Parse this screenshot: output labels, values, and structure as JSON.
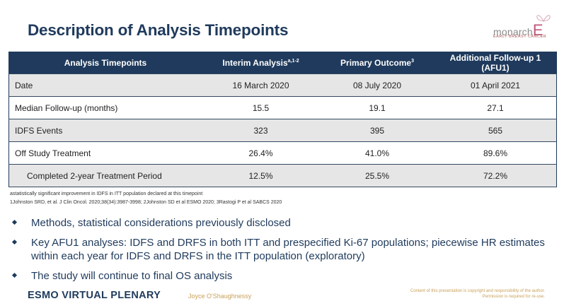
{
  "slide": {
    "title": "Description of Analysis Timepoints"
  },
  "brand": {
    "name_prefix": "monarch",
    "name_suffix": "E",
    "tagline": "EARLY BREAST CANCER",
    "accent_color": "#c0567a"
  },
  "table": {
    "header_color": "#1f3a5c",
    "headers": [
      {
        "text": "Analysis Timepoints",
        "sup": ""
      },
      {
        "text": "Interim Analysis",
        "sup": "a,1-2"
      },
      {
        "text": "Primary Outcome",
        "sup": "3"
      },
      {
        "text": "Additional Follow-up 1 (AFU1)",
        "sup": ""
      }
    ],
    "rows": [
      {
        "label": "Date",
        "values": [
          "16 March 2020",
          "08 July 2020",
          "01 April 2021"
        ]
      },
      {
        "label": "Median Follow-up (months)",
        "values": [
          "15.5",
          "19.1",
          "27.1"
        ]
      },
      {
        "label": "IDFS Events",
        "values": [
          "323",
          "395",
          "565"
        ]
      },
      {
        "label": "Off Study Treatment",
        "values": [
          "26.4%",
          "41.0%",
          "89.6%"
        ]
      },
      {
        "label": "Completed 2-year Treatment Period",
        "values": [
          "12.5%",
          "25.5%",
          "72.2%"
        ]
      }
    ]
  },
  "footnotes": {
    "a": "astatistically significant improvement in IDFS in ITT population declared at this timepoint",
    "refs": "1Johnston SRD, et al. J Clin Oncol. 2020;38(34):3987-3998; 2Johnston SD et al  ESMO 2020; 3Rastogi P et al SABCS 2020"
  },
  "bullets": [
    "Methods, statistical considerations previously disclosed",
    "Key AFU1 analyses: IDFS and DRFS in both ITT and prespecified Ki-67 populations; piecewise HR estimates within each year for IDFS and DRFS in the ITT population (exploratory)",
    "The study will continue to final OS analysis"
  ],
  "footer": {
    "conference": "ESMO VIRTUAL PLENARY",
    "presenter": "Joyce O'Shaughnessy",
    "copyright_line1": "Content of this presentation is copyright and responsibility of the author.",
    "copyright_line2": "Permission is required for re-use."
  }
}
